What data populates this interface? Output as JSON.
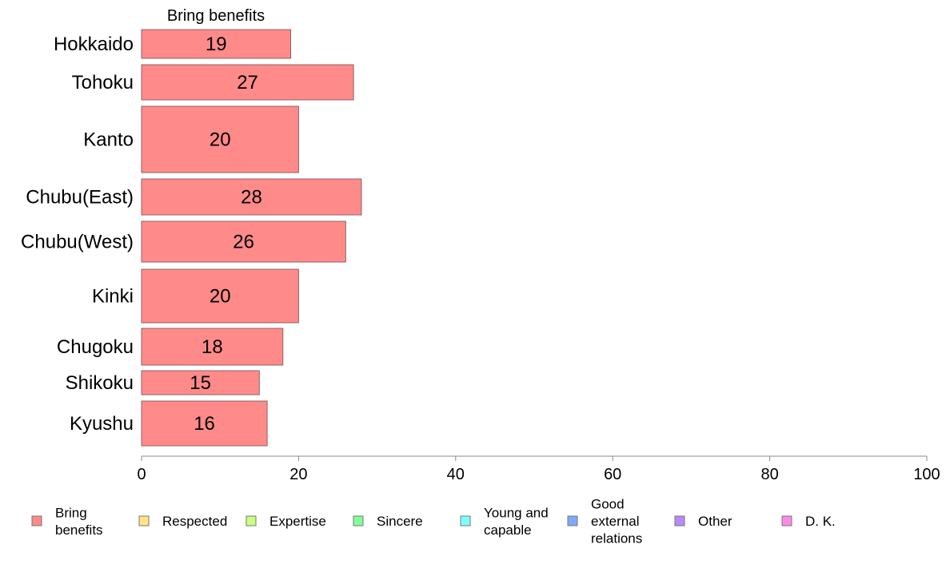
{
  "chart_data": {
    "type": "bar",
    "orientation": "horizontal",
    "panel_title": "Bring benefits",
    "categories": [
      "Hokkaido",
      "Tohoku",
      "Kanto",
      "Chubu(East)",
      "Chubu(West)",
      "Kinki",
      "Chugoku",
      "Shikoku",
      "Kyushu"
    ],
    "series": [
      {
        "name": "Bring benefits",
        "values": [
          19,
          27,
          20,
          28,
          26,
          20,
          18,
          15,
          16
        ]
      }
    ],
    "value_labels": [
      "19",
      "27",
      "20",
      "28",
      "26",
      "20",
      "18",
      "15",
      "16"
    ],
    "xlim": [
      0,
      100
    ],
    "xticks": [
      0,
      20,
      40,
      60,
      80,
      100
    ],
    "xtick_labels": [
      "0",
      "20",
      "40",
      "60",
      "80",
      "100"
    ],
    "grid": false,
    "legend_position": "bottom",
    "legend": [
      {
        "label": [
          "Bring",
          "benefits"
        ],
        "color": "#ff8a8a"
      },
      {
        "label": [
          "Respected"
        ],
        "color": "#ffe680"
      },
      {
        "label": [
          "Expertise"
        ],
        "color": "#ccff80"
      },
      {
        "label": [
          "Sincere"
        ],
        "color": "#80ff9a"
      },
      {
        "label": [
          "Young and",
          "capable"
        ],
        "color": "#80ffff"
      },
      {
        "label": [
          "Good",
          "external",
          "relations"
        ],
        "color": "#80a8ff"
      },
      {
        "label": [
          "Other"
        ],
        "color": "#b98aff"
      },
      {
        "label": [
          "D. K."
        ],
        "color": "#ff8ae6"
      }
    ],
    "bar_color": "#ff8a8a",
    "bar_border_color": "#8c6464"
  }
}
